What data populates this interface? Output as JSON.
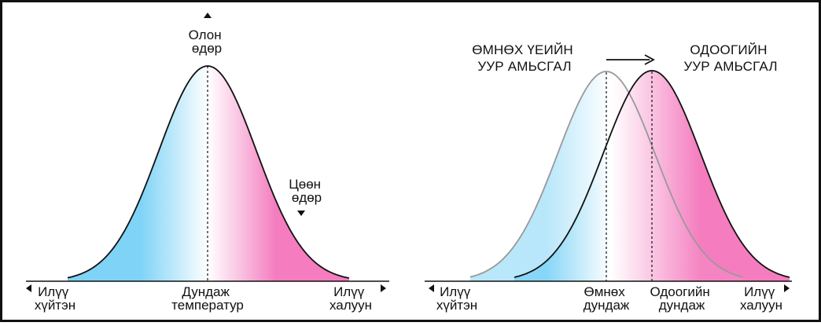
{
  "colors": {
    "cold": "#7fd3f7",
    "hot": "#f47cbf",
    "neutral": "#ffffff",
    "curve": "#111111",
    "previous_curve": "#999999",
    "border": "#111111"
  },
  "icons": {
    "arrow_up": "triangle-up-icon",
    "arrow_down": "triangle-down-icon",
    "arrow_left": "triangle-left-icon",
    "arrow_right": "triangle-right-icon",
    "shift_arrow": "arrow-right-icon"
  },
  "left_panel": {
    "peak_label": [
      "Олон",
      "өдөр"
    ],
    "tail_label": [
      "Цөөн",
      "өдөр"
    ],
    "axis_left_label": [
      "Илүү",
      "хүйтэн"
    ],
    "axis_center_label": [
      "Дундаж",
      "температур"
    ],
    "axis_right_label": [
      "Илүү",
      "халуун"
    ]
  },
  "right_panel": {
    "previous_title": [
      "ӨМНӨХ ҮЕИЙН",
      "УУР АМЬСГАЛ"
    ],
    "current_title": [
      "ОДООГИЙН",
      "УУР АМЬСГАЛ"
    ],
    "axis_left_label": [
      "Илүү",
      "хүйтэн"
    ],
    "previous_mean_label": [
      "Өмнөх",
      "дундаж"
    ],
    "current_mean_label": [
      "Одоогийн",
      "дундаж"
    ],
    "axis_right_label": [
      "Илүү",
      "халуун"
    ]
  }
}
